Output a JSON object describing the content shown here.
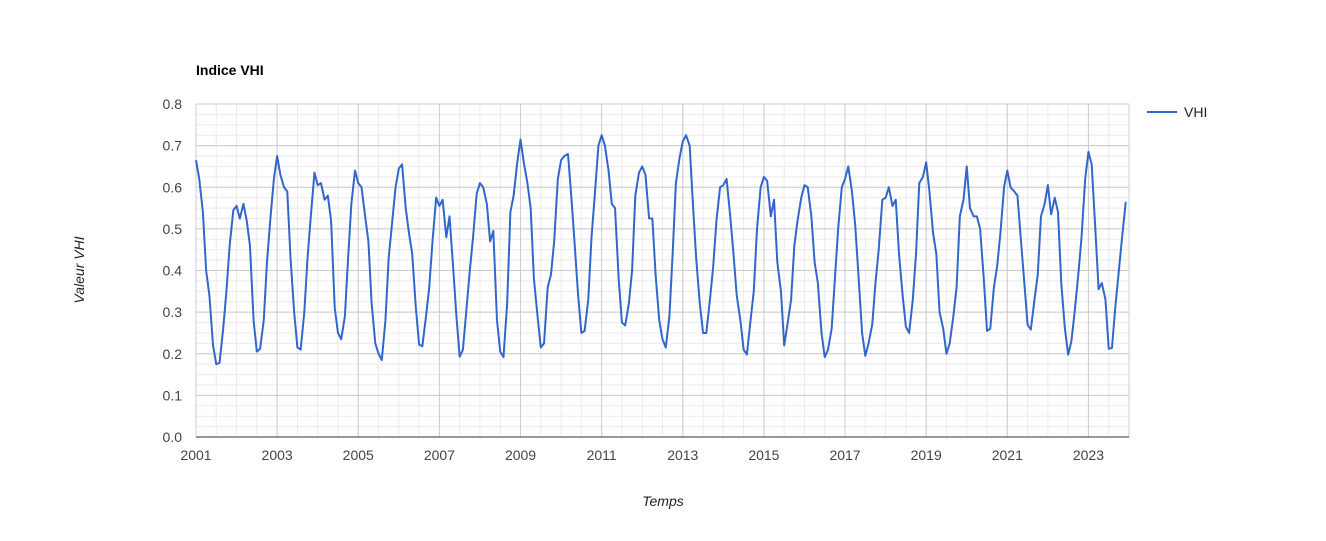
{
  "chart_data": {
    "type": "line",
    "title": "Indice VHI",
    "xlabel": "Temps",
    "ylabel": "Valeur VHI",
    "xlim": [
      2001,
      2024
    ],
    "ylim": [
      0,
      0.8
    ],
    "y_ticks": [
      "0.0",
      "0.1",
      "0.2",
      "0.3",
      "0.4",
      "0.5",
      "0.6",
      "0.7",
      "0.8"
    ],
    "x_ticks": [
      "2001",
      "2003",
      "2005",
      "2007",
      "2009",
      "2011",
      "2013",
      "2015",
      "2017",
      "2019",
      "2021",
      "2023"
    ],
    "grid": true,
    "legend_position": "right",
    "colors": {
      "VHI": "#3366cc"
    },
    "series": [
      {
        "name": "VHI",
        "points": [
          [
            2001.0,
            0.665
          ],
          [
            2001.08,
            0.62
          ],
          [
            2001.17,
            0.54
          ],
          [
            2001.25,
            0.4
          ],
          [
            2001.33,
            0.34
          ],
          [
            2001.42,
            0.22
          ],
          [
            2001.5,
            0.175
          ],
          [
            2001.58,
            0.178
          ],
          [
            2001.67,
            0.26
          ],
          [
            2001.75,
            0.35
          ],
          [
            2001.83,
            0.46
          ],
          [
            2001.92,
            0.545
          ],
          [
            2002.0,
            0.555
          ],
          [
            2002.08,
            0.525
          ],
          [
            2002.17,
            0.56
          ],
          [
            2002.25,
            0.52
          ],
          [
            2002.33,
            0.46
          ],
          [
            2002.42,
            0.28
          ],
          [
            2002.5,
            0.205
          ],
          [
            2002.58,
            0.212
          ],
          [
            2002.67,
            0.28
          ],
          [
            2002.75,
            0.42
          ],
          [
            2002.83,
            0.52
          ],
          [
            2002.92,
            0.62
          ],
          [
            2003.0,
            0.675
          ],
          [
            2003.08,
            0.63
          ],
          [
            2003.17,
            0.6
          ],
          [
            2003.25,
            0.59
          ],
          [
            2003.33,
            0.43
          ],
          [
            2003.42,
            0.3
          ],
          [
            2003.5,
            0.215
          ],
          [
            2003.58,
            0.21
          ],
          [
            2003.67,
            0.3
          ],
          [
            2003.75,
            0.43
          ],
          [
            2003.83,
            0.53
          ],
          [
            2003.92,
            0.635
          ],
          [
            2004.0,
            0.605
          ],
          [
            2004.08,
            0.61
          ],
          [
            2004.17,
            0.57
          ],
          [
            2004.25,
            0.58
          ],
          [
            2004.33,
            0.52
          ],
          [
            2004.42,
            0.31
          ],
          [
            2004.5,
            0.25
          ],
          [
            2004.58,
            0.235
          ],
          [
            2004.67,
            0.29
          ],
          [
            2004.75,
            0.43
          ],
          [
            2004.83,
            0.56
          ],
          [
            2004.92,
            0.64
          ],
          [
            2005.0,
            0.61
          ],
          [
            2005.08,
            0.6
          ],
          [
            2005.17,
            0.53
          ],
          [
            2005.25,
            0.47
          ],
          [
            2005.33,
            0.32
          ],
          [
            2005.42,
            0.225
          ],
          [
            2005.5,
            0.2
          ],
          [
            2005.58,
            0.185
          ],
          [
            2005.67,
            0.28
          ],
          [
            2005.75,
            0.43
          ],
          [
            2005.83,
            0.51
          ],
          [
            2005.92,
            0.6
          ],
          [
            2006.0,
            0.645
          ],
          [
            2006.08,
            0.655
          ],
          [
            2006.17,
            0.55
          ],
          [
            2006.25,
            0.49
          ],
          [
            2006.33,
            0.44
          ],
          [
            2006.42,
            0.31
          ],
          [
            2006.5,
            0.222
          ],
          [
            2006.58,
            0.218
          ],
          [
            2006.67,
            0.29
          ],
          [
            2006.75,
            0.36
          ],
          [
            2006.83,
            0.47
          ],
          [
            2006.92,
            0.575
          ],
          [
            2007.0,
            0.555
          ],
          [
            2007.08,
            0.57
          ],
          [
            2007.17,
            0.48
          ],
          [
            2007.25,
            0.53
          ],
          [
            2007.33,
            0.42
          ],
          [
            2007.42,
            0.29
          ],
          [
            2007.5,
            0.193
          ],
          [
            2007.58,
            0.21
          ],
          [
            2007.67,
            0.31
          ],
          [
            2007.75,
            0.4
          ],
          [
            2007.83,
            0.48
          ],
          [
            2007.92,
            0.585
          ],
          [
            2008.0,
            0.61
          ],
          [
            2008.08,
            0.6
          ],
          [
            2008.17,
            0.56
          ],
          [
            2008.25,
            0.47
          ],
          [
            2008.33,
            0.495
          ],
          [
            2008.42,
            0.28
          ],
          [
            2008.5,
            0.205
          ],
          [
            2008.58,
            0.192
          ],
          [
            2008.67,
            0.32
          ],
          [
            2008.75,
            0.54
          ],
          [
            2008.83,
            0.58
          ],
          [
            2008.92,
            0.66
          ],
          [
            2009.0,
            0.715
          ],
          [
            2009.08,
            0.66
          ],
          [
            2009.17,
            0.61
          ],
          [
            2009.25,
            0.55
          ],
          [
            2009.33,
            0.38
          ],
          [
            2009.42,
            0.29
          ],
          [
            2009.5,
            0.215
          ],
          [
            2009.58,
            0.225
          ],
          [
            2009.67,
            0.36
          ],
          [
            2009.75,
            0.39
          ],
          [
            2009.83,
            0.47
          ],
          [
            2009.92,
            0.62
          ],
          [
            2010.0,
            0.665
          ],
          [
            2010.08,
            0.675
          ],
          [
            2010.17,
            0.68
          ],
          [
            2010.25,
            0.58
          ],
          [
            2010.33,
            0.47
          ],
          [
            2010.42,
            0.34
          ],
          [
            2010.5,
            0.25
          ],
          [
            2010.58,
            0.255
          ],
          [
            2010.67,
            0.33
          ],
          [
            2010.75,
            0.48
          ],
          [
            2010.83,
            0.58
          ],
          [
            2010.92,
            0.7
          ],
          [
            2011.0,
            0.725
          ],
          [
            2011.08,
            0.7
          ],
          [
            2011.17,
            0.64
          ],
          [
            2011.25,
            0.56
          ],
          [
            2011.33,
            0.55
          ],
          [
            2011.42,
            0.38
          ],
          [
            2011.5,
            0.275
          ],
          [
            2011.58,
            0.268
          ],
          [
            2011.67,
            0.32
          ],
          [
            2011.75,
            0.4
          ],
          [
            2011.83,
            0.58
          ],
          [
            2011.92,
            0.635
          ],
          [
            2012.0,
            0.65
          ],
          [
            2012.08,
            0.63
          ],
          [
            2012.17,
            0.525
          ],
          [
            2012.25,
            0.525
          ],
          [
            2012.33,
            0.39
          ],
          [
            2012.42,
            0.28
          ],
          [
            2012.5,
            0.235
          ],
          [
            2012.58,
            0.215
          ],
          [
            2012.67,
            0.29
          ],
          [
            2012.75,
            0.44
          ],
          [
            2012.83,
            0.61
          ],
          [
            2012.92,
            0.67
          ],
          [
            2013.0,
            0.71
          ],
          [
            2013.08,
            0.725
          ],
          [
            2013.17,
            0.7
          ],
          [
            2013.25,
            0.56
          ],
          [
            2013.33,
            0.43
          ],
          [
            2013.42,
            0.32
          ],
          [
            2013.5,
            0.25
          ],
          [
            2013.58,
            0.25
          ],
          [
            2013.67,
            0.33
          ],
          [
            2013.75,
            0.41
          ],
          [
            2013.83,
            0.52
          ],
          [
            2013.92,
            0.6
          ],
          [
            2014.0,
            0.605
          ],
          [
            2014.08,
            0.62
          ],
          [
            2014.17,
            0.53
          ],
          [
            2014.25,
            0.44
          ],
          [
            2014.33,
            0.34
          ],
          [
            2014.42,
            0.28
          ],
          [
            2014.5,
            0.21
          ],
          [
            2014.58,
            0.198
          ],
          [
            2014.67,
            0.28
          ],
          [
            2014.75,
            0.35
          ],
          [
            2014.83,
            0.5
          ],
          [
            2014.92,
            0.6
          ],
          [
            2015.0,
            0.625
          ],
          [
            2015.08,
            0.615
          ],
          [
            2015.17,
            0.53
          ],
          [
            2015.25,
            0.57
          ],
          [
            2015.33,
            0.42
          ],
          [
            2015.42,
            0.35
          ],
          [
            2015.5,
            0.22
          ],
          [
            2015.58,
            0.27
          ],
          [
            2015.67,
            0.33
          ],
          [
            2015.75,
            0.46
          ],
          [
            2015.83,
            0.52
          ],
          [
            2015.92,
            0.575
          ],
          [
            2016.0,
            0.605
          ],
          [
            2016.08,
            0.6
          ],
          [
            2016.17,
            0.53
          ],
          [
            2016.25,
            0.42
          ],
          [
            2016.33,
            0.37
          ],
          [
            2016.42,
            0.25
          ],
          [
            2016.5,
            0.192
          ],
          [
            2016.58,
            0.21
          ],
          [
            2016.67,
            0.26
          ],
          [
            2016.75,
            0.38
          ],
          [
            2016.83,
            0.5
          ],
          [
            2016.92,
            0.6
          ],
          [
            2017.0,
            0.62
          ],
          [
            2017.08,
            0.65
          ],
          [
            2017.17,
            0.59
          ],
          [
            2017.25,
            0.51
          ],
          [
            2017.33,
            0.39
          ],
          [
            2017.42,
            0.25
          ],
          [
            2017.5,
            0.195
          ],
          [
            2017.58,
            0.225
          ],
          [
            2017.67,
            0.27
          ],
          [
            2017.75,
            0.37
          ],
          [
            2017.83,
            0.45
          ],
          [
            2017.92,
            0.57
          ],
          [
            2018.0,
            0.575
          ],
          [
            2018.08,
            0.6
          ],
          [
            2018.17,
            0.555
          ],
          [
            2018.25,
            0.57
          ],
          [
            2018.33,
            0.44
          ],
          [
            2018.42,
            0.34
          ],
          [
            2018.5,
            0.265
          ],
          [
            2018.58,
            0.25
          ],
          [
            2018.67,
            0.33
          ],
          [
            2018.75,
            0.44
          ],
          [
            2018.83,
            0.61
          ],
          [
            2018.92,
            0.625
          ],
          [
            2019.0,
            0.66
          ],
          [
            2019.08,
            0.59
          ],
          [
            2019.17,
            0.49
          ],
          [
            2019.25,
            0.44
          ],
          [
            2019.33,
            0.3
          ],
          [
            2019.42,
            0.26
          ],
          [
            2019.5,
            0.2
          ],
          [
            2019.58,
            0.225
          ],
          [
            2019.67,
            0.29
          ],
          [
            2019.75,
            0.36
          ],
          [
            2019.83,
            0.53
          ],
          [
            2019.92,
            0.57
          ],
          [
            2020.0,
            0.65
          ],
          [
            2020.08,
            0.55
          ],
          [
            2020.17,
            0.53
          ],
          [
            2020.25,
            0.53
          ],
          [
            2020.33,
            0.5
          ],
          [
            2020.42,
            0.38
          ],
          [
            2020.5,
            0.255
          ],
          [
            2020.58,
            0.26
          ],
          [
            2020.67,
            0.36
          ],
          [
            2020.75,
            0.41
          ],
          [
            2020.83,
            0.49
          ],
          [
            2020.92,
            0.6
          ],
          [
            2021.0,
            0.64
          ],
          [
            2021.08,
            0.6
          ],
          [
            2021.17,
            0.59
          ],
          [
            2021.25,
            0.58
          ],
          [
            2021.33,
            0.48
          ],
          [
            2021.42,
            0.37
          ],
          [
            2021.5,
            0.27
          ],
          [
            2021.58,
            0.258
          ],
          [
            2021.67,
            0.33
          ],
          [
            2021.75,
            0.39
          ],
          [
            2021.83,
            0.53
          ],
          [
            2021.92,
            0.56
          ],
          [
            2022.0,
            0.605
          ],
          [
            2022.08,
            0.535
          ],
          [
            2022.17,
            0.575
          ],
          [
            2022.25,
            0.54
          ],
          [
            2022.33,
            0.37
          ],
          [
            2022.42,
            0.26
          ],
          [
            2022.5,
            0.198
          ],
          [
            2022.58,
            0.23
          ],
          [
            2022.67,
            0.31
          ],
          [
            2022.75,
            0.39
          ],
          [
            2022.83,
            0.48
          ],
          [
            2022.92,
            0.62
          ],
          [
            2023.0,
            0.685
          ],
          [
            2023.08,
            0.655
          ],
          [
            2023.17,
            0.5
          ],
          [
            2023.25,
            0.355
          ],
          [
            2023.33,
            0.37
          ],
          [
            2023.42,
            0.33
          ],
          [
            2023.5,
            0.212
          ],
          [
            2023.58,
            0.214
          ],
          [
            2023.67,
            0.32
          ],
          [
            2023.75,
            0.4
          ],
          [
            2023.83,
            0.48
          ],
          [
            2023.92,
            0.565
          ]
        ]
      }
    ]
  }
}
